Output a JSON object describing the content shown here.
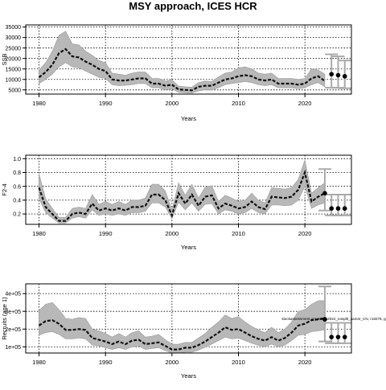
{
  "page_title": "MSY approach, ICES HCR",
  "chart_data": [
    {
      "type": "line",
      "name": "ssb",
      "ylabel": "SSB",
      "xlabel": "Years",
      "xlim": [
        1978,
        2027
      ],
      "ylim": [
        3000,
        36000
      ],
      "xticks": [
        1980,
        1990,
        2000,
        2010,
        2020
      ],
      "yticks": [
        5000,
        10000,
        15000,
        20000,
        25000,
        30000,
        35000
      ],
      "ytick_labels": [
        "5000",
        "10000",
        "15000",
        "20000",
        "25000",
        "30000",
        "35000"
      ],
      "grid": true,
      "x": [
        1980,
        1981,
        1982,
        1983,
        1984,
        1985,
        1986,
        1987,
        1988,
        1989,
        1990,
        1991,
        1992,
        1993,
        1994,
        1995,
        1996,
        1997,
        1998,
        1999,
        2000,
        2001,
        2002,
        2003,
        2004,
        2005,
        2006,
        2007,
        2008,
        2009,
        2010,
        2011,
        2012,
        2013,
        2014,
        2015,
        2016,
        2017,
        2018,
        2019,
        2020,
        2021,
        2022,
        2023
      ],
      "y": [
        11000,
        13500,
        17000,
        22500,
        24500,
        21000,
        20500,
        18500,
        17000,
        15000,
        14000,
        10000,
        9500,
        9500,
        10000,
        10500,
        10500,
        8000,
        8000,
        7000,
        7500,
        5200,
        5000,
        4800,
        6500,
        7000,
        7000,
        8500,
        10000,
        10500,
        11500,
        12000,
        11500,
        10000,
        9500,
        10000,
        8000,
        8000,
        8000,
        7500,
        8000,
        10500,
        11500,
        9200
      ],
      "band_low": [
        8000,
        10000,
        12500,
        16000,
        18000,
        16000,
        15500,
        14000,
        12500,
        11000,
        10500,
        7500,
        7000,
        7200,
        7500,
        8000,
        8000,
        6000,
        6000,
        5000,
        5500,
        3800,
        3600,
        3500,
        4500,
        5000,
        5000,
        6000,
        7500,
        8000,
        8500,
        9000,
        8500,
        7500,
        7000,
        7500,
        6000,
        6000,
        6000,
        5500,
        6000,
        7500,
        8500,
        6500
      ],
      "band_high": [
        14500,
        18000,
        23500,
        31000,
        33000,
        27000,
        26500,
        23500,
        21500,
        19000,
        18000,
        13000,
        12500,
        12000,
        13000,
        13500,
        13500,
        10500,
        10500,
        9200,
        9800,
        6800,
        6500,
        6300,
        8500,
        9200,
        9000,
        11200,
        13000,
        13500,
        15500,
        16000,
        15000,
        13000,
        12500,
        13000,
        10500,
        10500,
        10500,
        10000,
        10500,
        15000,
        14500,
        12500
      ],
      "forecast": [
        {
          "x": 2024,
          "y": 12500,
          "low": 6000,
          "high": 22000
        },
        {
          "x": 2025,
          "y": 12000,
          "low": 6000,
          "high": 21000
        },
        {
          "x": 2026,
          "y": 11500,
          "low": 5800,
          "high": 19000
        }
      ]
    },
    {
      "type": "line",
      "name": "f",
      "ylabel": "F2-4",
      "xlabel": "Years",
      "xlim": [
        1978,
        2027
      ],
      "ylim": [
        0.05,
        1.05
      ],
      "xticks": [
        1980,
        1990,
        2000,
        2010,
        2020
      ],
      "yticks": [
        0.2,
        0.4,
        0.6,
        0.8,
        1.0
      ],
      "ytick_labels": [
        "0.2",
        "0.4",
        "0.6",
        "0.8",
        "1.0"
      ],
      "grid": true,
      "x": [
        1980,
        1981,
        1982,
        1983,
        1984,
        1985,
        1986,
        1987,
        1988,
        1989,
        1990,
        1991,
        1992,
        1993,
        1994,
        1995,
        1996,
        1997,
        1998,
        1999,
        2000,
        2001,
        2002,
        2003,
        2004,
        2005,
        2006,
        2007,
        2008,
        2009,
        2010,
        2011,
        2012,
        2013,
        2014,
        2015,
        2016,
        2017,
        2018,
        2019,
        2020,
        2021,
        2022,
        2023
      ],
      "y": [
        0.58,
        0.3,
        0.2,
        0.1,
        0.1,
        0.2,
        0.22,
        0.2,
        0.35,
        0.25,
        0.28,
        0.25,
        0.28,
        0.25,
        0.3,
        0.3,
        0.32,
        0.48,
        0.48,
        0.4,
        0.18,
        0.5,
        0.35,
        0.48,
        0.32,
        0.45,
        0.47,
        0.28,
        0.35,
        0.32,
        0.28,
        0.3,
        0.38,
        0.3,
        0.27,
        0.45,
        0.44,
        0.43,
        0.45,
        0.55,
        0.8,
        0.38,
        0.45,
        0.5
      ],
      "band_low": [
        0.42,
        0.22,
        0.14,
        0.07,
        0.07,
        0.14,
        0.16,
        0.14,
        0.26,
        0.18,
        0.2,
        0.18,
        0.2,
        0.18,
        0.22,
        0.22,
        0.24,
        0.36,
        0.36,
        0.3,
        0.13,
        0.37,
        0.26,
        0.36,
        0.24,
        0.34,
        0.35,
        0.2,
        0.26,
        0.24,
        0.2,
        0.22,
        0.28,
        0.22,
        0.2,
        0.33,
        0.33,
        0.32,
        0.33,
        0.4,
        0.6,
        0.28,
        0.33,
        0.36
      ],
      "band_high": [
        0.78,
        0.42,
        0.28,
        0.15,
        0.15,
        0.28,
        0.3,
        0.28,
        0.48,
        0.34,
        0.38,
        0.34,
        0.38,
        0.34,
        0.4,
        0.4,
        0.43,
        0.63,
        0.63,
        0.53,
        0.26,
        0.65,
        0.47,
        0.63,
        0.43,
        0.59,
        0.61,
        0.38,
        0.47,
        0.43,
        0.38,
        0.4,
        0.5,
        0.4,
        0.36,
        0.58,
        0.57,
        0.56,
        0.58,
        0.7,
        0.98,
        0.5,
        0.58,
        0.65
      ],
      "forecast": [
        {
          "x": 2023,
          "y": 0.5,
          "low": 0.25,
          "high": 0.85
        },
        {
          "x": 2024,
          "y": 0.28,
          "low": 0.18,
          "high": 0.48
        },
        {
          "x": 2025,
          "y": 0.28,
          "low": 0.18,
          "high": 0.48
        },
        {
          "x": 2026,
          "y": 0.28,
          "low": 0.18,
          "high": 0.48
        }
      ]
    },
    {
      "type": "line",
      "name": "recruits",
      "ylabel": "Recruits (age 1)",
      "xlabel": "Years",
      "xlim": [
        1978,
        2027
      ],
      "ylim": [
        0.65,
        4.55
      ],
      "xticks": [
        1980,
        1990,
        2000,
        2010,
        2020
      ],
      "yticks": [
        1,
        2,
        3,
        4
      ],
      "ytick_labels": [
        "1e+05",
        "2e+05",
        "3e+05",
        "4e+05"
      ],
      "grid": true,
      "x": [
        1980,
        1981,
        1982,
        1983,
        1984,
        1985,
        1986,
        1987,
        1988,
        1989,
        1990,
        1991,
        1992,
        1993,
        1994,
        1995,
        1996,
        1997,
        1998,
        1999,
        2000,
        2001,
        2002,
        2003,
        2004,
        2005,
        2006,
        2007,
        2008,
        2009,
        2010,
        2011,
        2012,
        2013,
        2014,
        2015,
        2016,
        2017,
        2018,
        2019,
        2020,
        2021,
        2022,
        2023
      ],
      "y": [
        2.2,
        2.45,
        2.5,
        2.3,
        1.95,
        1.95,
        2.0,
        1.95,
        1.5,
        1.4,
        1.3,
        1.15,
        1.3,
        1.15,
        1.35,
        1.4,
        1.15,
        1.2,
        1.25,
        1.05,
        0.85,
        0.85,
        0.95,
        0.95,
        1.1,
        1.3,
        1.55,
        1.8,
        2.1,
        1.95,
        2.0,
        1.8,
        1.6,
        1.45,
        1.35,
        1.55,
        1.35,
        1.5,
        1.8,
        2.2,
        2.3,
        2.5,
        2.55,
        2.6
      ],
      "band_low": [
        1.65,
        1.8,
        1.85,
        1.7,
        1.45,
        1.45,
        1.5,
        1.45,
        1.1,
        1.05,
        0.95,
        0.85,
        0.95,
        0.85,
        1.0,
        1.05,
        0.85,
        0.9,
        0.95,
        0.78,
        0.65,
        0.65,
        0.7,
        0.7,
        0.82,
        0.97,
        1.15,
        1.35,
        1.55,
        1.45,
        1.5,
        1.35,
        1.2,
        1.08,
        1.0,
        1.15,
        1.0,
        1.1,
        1.35,
        1.65,
        1.7,
        1.85,
        1.9,
        1.95
      ],
      "band_high": [
        3.05,
        3.4,
        3.5,
        3.1,
        2.6,
        2.55,
        2.65,
        2.6,
        2.0,
        1.9,
        1.75,
        1.55,
        1.75,
        1.55,
        1.8,
        1.9,
        1.55,
        1.6,
        1.7,
        1.4,
        1.15,
        1.15,
        1.25,
        1.25,
        1.5,
        1.75,
        2.1,
        2.4,
        2.8,
        2.6,
        2.7,
        2.4,
        2.15,
        1.95,
        1.8,
        2.1,
        1.8,
        2.0,
        2.4,
        3.0,
        3.1,
        3.4,
        3.6,
        3.6
      ],
      "forecast": [
        {
          "x": 2023,
          "y": 2.55,
          "low": 1.3,
          "high": 4.4
        },
        {
          "x": 2024,
          "y": 1.55,
          "low": 1.2,
          "high": 2.35
        },
        {
          "x": 2025,
          "y": 1.55,
          "low": 1.2,
          "high": 2.35
        },
        {
          "x": 2026,
          "y": 1.55,
          "low": 1.2,
          "high": 2.35
        }
      ],
      "annotation": {
        "x": 2016.5,
        "y": 2.5,
        "text": "stockassessment.org,NSSK2024_nosplit_sam4r_CN, r18276, git:c9c6"
      }
    }
  ]
}
